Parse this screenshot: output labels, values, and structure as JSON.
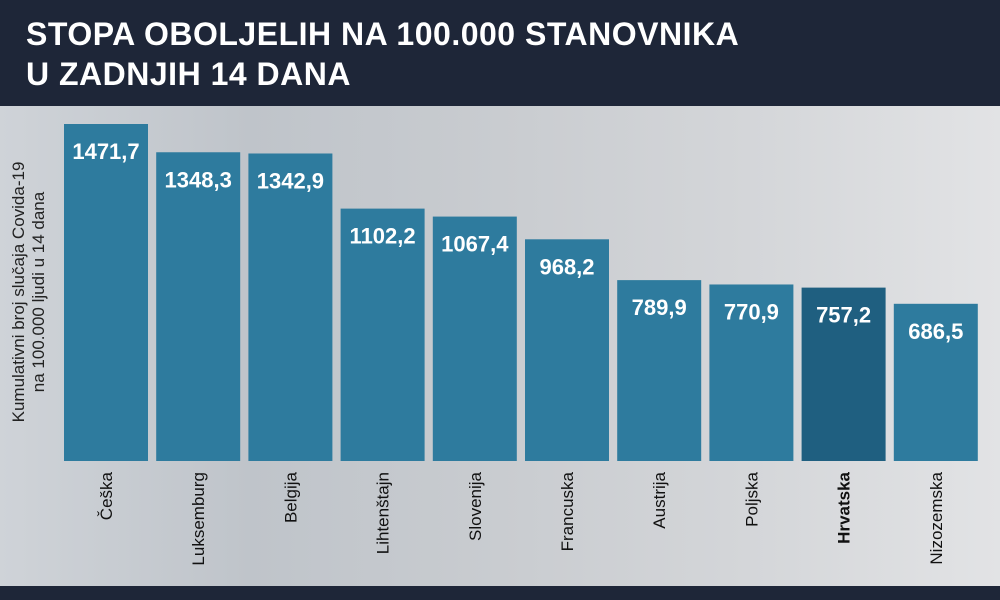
{
  "title_line1": "STOPA OBOLJELIH NA 100.000 STANOVNIKA",
  "title_line2": "U ZADNJIH 14 DANA",
  "chart_data": {
    "type": "bar",
    "ylabel_line1": "Kumulativni broj slučaja Covida-19",
    "ylabel_line2": "na 100.000 ljudi u 14 dana",
    "categories": [
      "Češka",
      "Luksemburg",
      "Belgija",
      "Lihtenštajn",
      "Slovenija",
      "Francuska",
      "Austrija",
      "Poljska",
      "Hrvatska",
      "Nizozemska"
    ],
    "values": [
      1471.7,
      1348.3,
      1342.9,
      1102.2,
      1067.4,
      968.2,
      789.9,
      770.9,
      757.2,
      686.5
    ],
    "value_labels": [
      "1471,7",
      "1348,3",
      "1342,9",
      "1102,2",
      "1067,4",
      "968,2",
      "789,9",
      "770,9",
      "757,2",
      "686,5"
    ],
    "highlight": "Hrvatska",
    "colors": {
      "bar": "#2e7b9e",
      "highlight": "#1f5f80",
      "header": "#1e2638"
    }
  }
}
